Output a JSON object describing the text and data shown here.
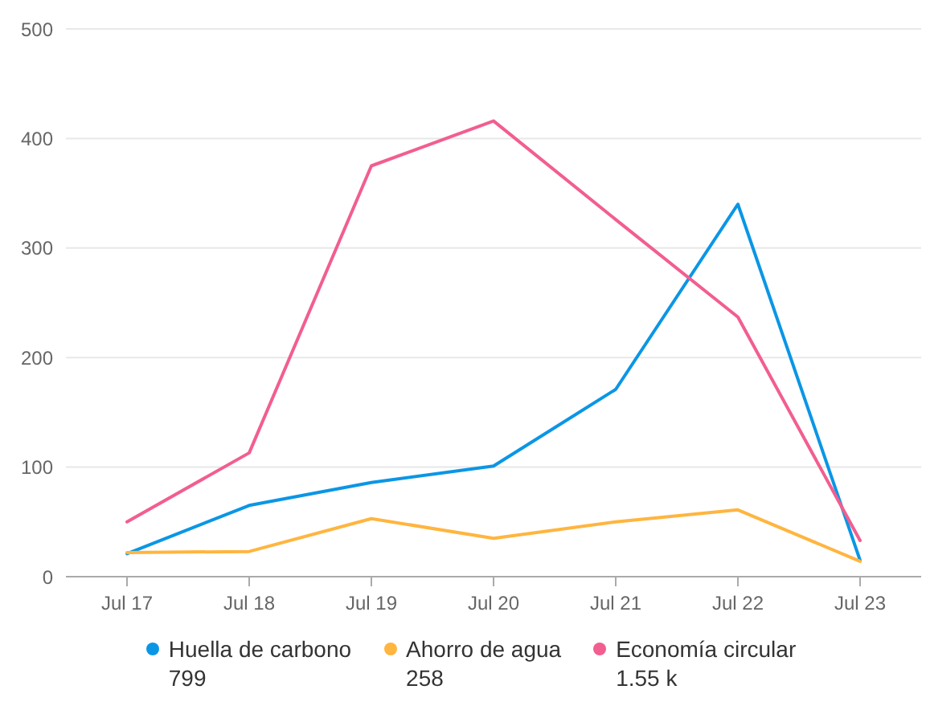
{
  "chart_data": {
    "type": "line",
    "categories": [
      "Jul 17",
      "Jul 18",
      "Jul 19",
      "Jul 20",
      "Jul 21",
      "Jul 22",
      "Jul 23"
    ],
    "series": [
      {
        "name": "Huella de carbono",
        "color": "#0b96e5",
        "values": [
          21,
          65,
          86,
          101,
          171,
          340,
          15
        ]
      },
      {
        "name": "Ahorro de agua",
        "color": "#ffb53f",
        "values": [
          22,
          23,
          53,
          35,
          50,
          61,
          14
        ]
      },
      {
        "name": "Economía circular",
        "color": "#f25e8f",
        "values": [
          50,
          113,
          375,
          416,
          326,
          237,
          33
        ]
      }
    ],
    "ylim": [
      0,
      500
    ],
    "yticks": [
      0,
      100,
      200,
      300,
      400,
      500
    ],
    "grid": "y",
    "legend": "bottom",
    "marker": "none",
    "line_style": "solid",
    "annotations": [
      "799",
      "258",
      "1.55 k"
    ]
  }
}
